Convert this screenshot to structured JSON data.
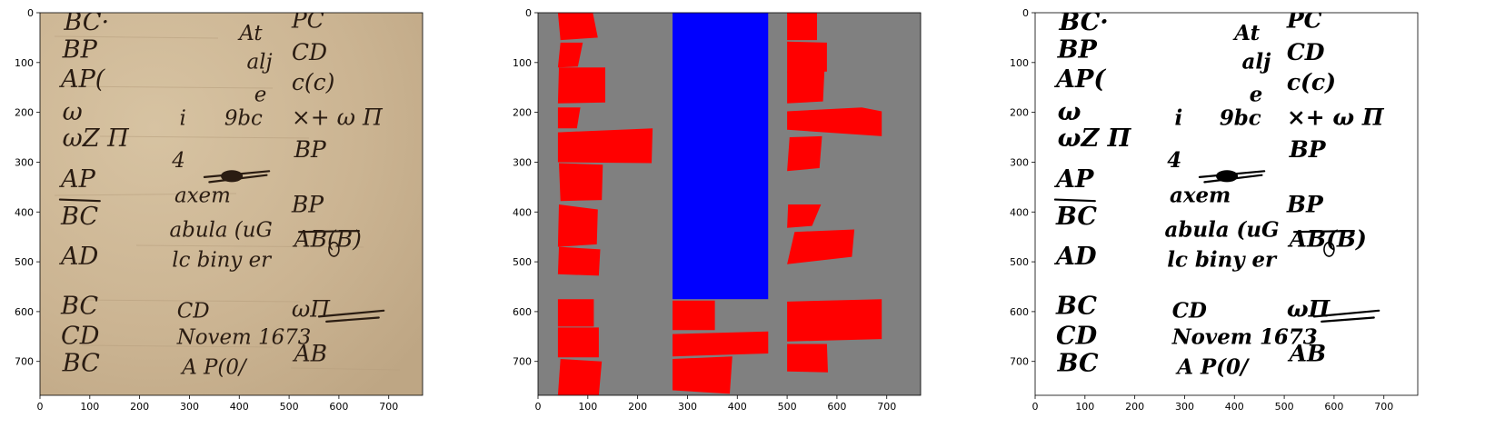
{
  "panels": [
    {
      "id": "photo",
      "xticks": [
        "0",
        "100",
        "200",
        "300",
        "400",
        "500",
        "600",
        "700"
      ],
      "yticks": [
        "0",
        "100",
        "200",
        "300",
        "400",
        "500",
        "600",
        "700"
      ]
    },
    {
      "id": "layout",
      "xticks": [
        "0",
        "100",
        "200",
        "300",
        "400",
        "500",
        "600",
        "700"
      ],
      "yticks": [
        "0",
        "100",
        "200",
        "300",
        "400",
        "500",
        "600",
        "700"
      ]
    },
    {
      "id": "binary",
      "xticks": [
        "0",
        "100",
        "200",
        "300",
        "400",
        "500",
        "600",
        "700"
      ],
      "yticks": [
        "0",
        "100",
        "200",
        "300",
        "400",
        "500",
        "600",
        "700"
      ]
    }
  ],
  "colors": {
    "paper": "#cdb796",
    "ink": "#2a1c12",
    "layout_bg": "#808080",
    "text_region": "#ff0000",
    "figure_region": "#0000ff"
  },
  "image_extent": {
    "width": 768,
    "height": 768
  },
  "manuscript_text": {
    "left_col": [
      "BC·",
      "BP",
      "AP(",
      "ω",
      "ωZ Π",
      "AP",
      "BC",
      "AD",
      "BC",
      "CD",
      "BC"
    ],
    "mid_col": [
      "At",
      "alj",
      "e",
      "i",
      "9bc",
      "4",
      "axem",
      "abula (uG",
      "lc biny er",
      "CD",
      "Novem 1673",
      "A P(0/"
    ],
    "right_col": [
      "PC",
      "CD",
      "c(c)",
      "×+ ω Π",
      "BP",
      "BP",
      "AB(B)",
      "ωΠ",
      "AB"
    ]
  },
  "layout_regions": {
    "figure": [
      {
        "x0": 270,
        "y0": 0,
        "x1": 462,
        "y1": 575
      }
    ],
    "text": [
      [
        [
          40,
          0
        ],
        [
          110,
          0
        ],
        [
          120,
          50
        ],
        [
          45,
          55
        ]
      ],
      [
        [
          45,
          60
        ],
        [
          90,
          60
        ],
        [
          80,
          108
        ],
        [
          40,
          110
        ]
      ],
      [
        [
          42,
          110
        ],
        [
          135,
          110
        ],
        [
          135,
          180
        ],
        [
          40,
          182
        ]
      ],
      [
        [
          40,
          190
        ],
        [
          85,
          190
        ],
        [
          78,
          232
        ],
        [
          40,
          232
        ]
      ],
      [
        [
          40,
          240
        ],
        [
          230,
          232
        ],
        [
          228,
          302
        ],
        [
          40,
          300
        ]
      ],
      [
        [
          42,
          302
        ],
        [
          130,
          305
        ],
        [
          128,
          376
        ],
        [
          45,
          378
        ]
      ],
      [
        [
          42,
          385
        ],
        [
          120,
          395
        ],
        [
          118,
          465
        ],
        [
          40,
          470
        ]
      ],
      [
        [
          42,
          470
        ],
        [
          125,
          475
        ],
        [
          122,
          528
        ],
        [
          40,
          525
        ]
      ],
      [
        [
          40,
          575
        ],
        [
          112,
          575
        ],
        [
          112,
          630
        ],
        [
          40,
          630
        ]
      ],
      [
        [
          40,
          632
        ],
        [
          122,
          632
        ],
        [
          122,
          692
        ],
        [
          40,
          692
        ]
      ],
      [
        [
          45,
          695
        ],
        [
          128,
          700
        ],
        [
          122,
          768
        ],
        [
          40,
          768
        ]
      ],
      [
        [
          500,
          0
        ],
        [
          560,
          0
        ],
        [
          560,
          55
        ],
        [
          500,
          55
        ]
      ],
      [
        [
          500,
          58
        ],
        [
          580,
          60
        ],
        [
          580,
          118
        ],
        [
          500,
          120
        ]
      ],
      [
        [
          500,
          118
        ],
        [
          575,
          115
        ],
        [
          572,
          178
        ],
        [
          500,
          182
        ]
      ],
      [
        [
          500,
          198
        ],
        [
          650,
          190
        ],
        [
          690,
          198
        ],
        [
          690,
          248
        ],
        [
          500,
          235
        ]
      ],
      [
        [
          505,
          250
        ],
        [
          570,
          248
        ],
        [
          565,
          312
        ],
        [
          500,
          318
        ]
      ],
      [
        [
          502,
          385
        ],
        [
          568,
          385
        ],
        [
          550,
          428
        ],
        [
          500,
          432
        ]
      ],
      [
        [
          515,
          440
        ],
        [
          635,
          435
        ],
        [
          630,
          490
        ],
        [
          500,
          505
        ]
      ],
      [
        [
          500,
          580
        ],
        [
          690,
          575
        ],
        [
          690,
          655
        ],
        [
          500,
          660
        ]
      ],
      [
        [
          500,
          665
        ],
        [
          580,
          665
        ],
        [
          582,
          722
        ],
        [
          500,
          720
        ]
      ],
      [
        [
          270,
          578
        ],
        [
          355,
          578
        ],
        [
          355,
          637
        ],
        [
          270,
          637
        ]
      ],
      [
        [
          270,
          645
        ],
        [
          462,
          640
        ],
        [
          462,
          684
        ],
        [
          270,
          690
        ]
      ],
      [
        [
          270,
          695
        ],
        [
          390,
          690
        ],
        [
          385,
          765
        ],
        [
          270,
          758
        ]
      ]
    ]
  }
}
